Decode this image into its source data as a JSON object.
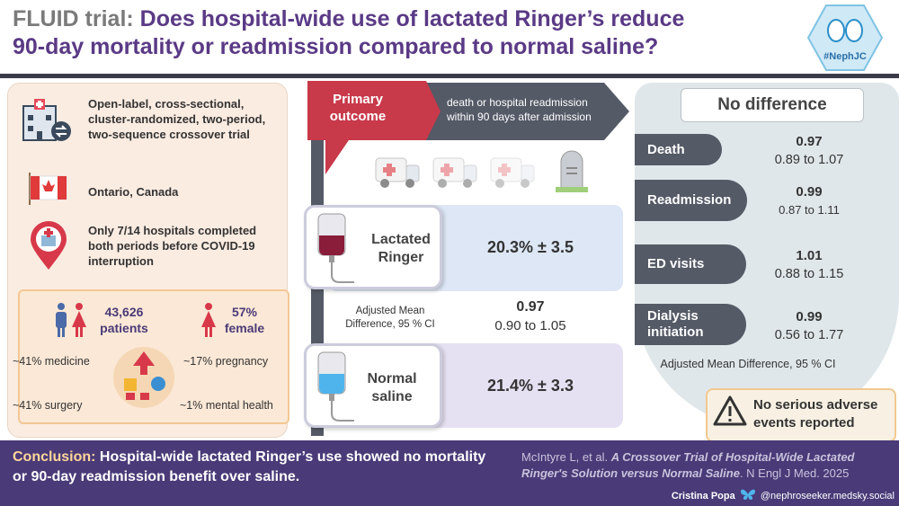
{
  "header": {
    "title_prefix": "FLUID trial:",
    "title_line1": "Does hospital-wide use of lactated Ringer’s reduce",
    "title_line2": "90-day mortality or readmission compared to normal saline?",
    "badge": "#NephJC"
  },
  "design": {
    "type": "Open-label, cross-sectional, cluster-randomized, two-period, two-sequence crossover trial",
    "location": "Ontario, Canada",
    "hospitals": "Only 7/14 hospitals completed both periods before COVID-19 interruption"
  },
  "population": {
    "patients_value": "43,626",
    "patients_label": "patients",
    "female_value": "57%",
    "female_label": "female",
    "specialties": [
      "~41% medicine",
      "~17% pregnancy",
      "~41% surgery",
      "~1% mental health"
    ]
  },
  "primary_outcome": {
    "label_line1": "Primary",
    "label_line2": "outcome",
    "desc_line1": "death or hospital readmission",
    "desc_line2": "within 90 days after admission"
  },
  "arms": {
    "lr_name_1": "Lactated",
    "lr_name_2": "Ringer",
    "lr_value": "20.3% ± 3.5",
    "amd_label_1": "Adjusted Mean",
    "amd_label_2": "Difference, 95 % CI",
    "amd_value": "0.97",
    "amd_ci": "0.90 to 1.05",
    "ns_name_1": "Normal",
    "ns_name_2": "saline",
    "ns_value": "21.4% ± 3.3"
  },
  "results": {
    "heading": "No difference",
    "outcomes": [
      {
        "label": "Death",
        "value": "0.97",
        "ci": "0.89 to 1.07"
      },
      {
        "label": "Readmission",
        "value": "0.99",
        "ci": "0.87 to 1.11"
      },
      {
        "label": "ED visits",
        "value": "1.01",
        "ci": "0.88 to 1.15"
      },
      {
        "label_1": "Dialysis",
        "label_2": "initiation",
        "value": "0.99",
        "ci": "0.56 to 1.77"
      }
    ],
    "footnote": "Adjusted Mean Difference, 95 % CI",
    "adverse_line1": "No serious adverse",
    "adverse_line2": "events reported"
  },
  "footer": {
    "conclusion_label": "Conclusion:",
    "conclusion_text": "Hospital-wide lactated Ringer’s use showed no mortality or 90-day readmission benefit over saline.",
    "ref_authors": "McIntyre L, et al.",
    "ref_title": "A Crossover Trial of Hospital-Wide Lactated Ringer's Solution versus Normal Saline",
    "ref_journal": ". N Engl J Med. 2025",
    "credit_name": "Cristina Popa",
    "credit_handle": "@nephroseeker.medsky.social"
  },
  "colors": {
    "purple": "#4a3a78",
    "title": "#5a3a86",
    "red": "#c8394a",
    "slate": "#545a66"
  }
}
